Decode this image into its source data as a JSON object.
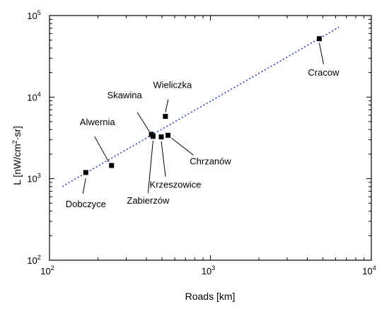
{
  "chart_data": {
    "type": "scatter",
    "title": "",
    "xlabel": "Roads [km]",
    "ylabel": {
      "prefix": "L [nW/cm",
      "sup": "2",
      "suffix": "·sr]"
    },
    "xscale": "log",
    "yscale": "log",
    "xlim": [
      100,
      10000
    ],
    "ylim": [
      100,
      100000
    ],
    "x_ticks": [
      {
        "value": 100,
        "base": "10",
        "exp": "2"
      },
      {
        "value": 1000,
        "base": "10",
        "exp": "3"
      },
      {
        "value": 10000,
        "base": "10",
        "exp": "4"
      }
    ],
    "y_ticks": [
      {
        "value": 100,
        "base": "10",
        "exp": "2"
      },
      {
        "value": 1000,
        "base": "10",
        "exp": "3"
      },
      {
        "value": 10000,
        "base": "10",
        "exp": "4"
      },
      {
        "value": 100000,
        "base": "10",
        "exp": "5"
      }
    ],
    "grid": false,
    "legend": "none",
    "points": [
      {
        "name": "Dobczyce",
        "x": 168,
        "y": 1190
      },
      {
        "name": "Alwernia",
        "x": 243,
        "y": 1450
      },
      {
        "name": "Skawina",
        "x": 430,
        "y": 3500
      },
      {
        "name": "Zabierzów",
        "x": 440,
        "y": 3300
      },
      {
        "name": "Krzeszowice",
        "x": 495,
        "y": 3250
      },
      {
        "name": "Wieliczka",
        "x": 525,
        "y": 5800
      },
      {
        "name": "Chrzanów",
        "x": 545,
        "y": 3400
      },
      {
        "name": "Cracow",
        "x": 4750,
        "y": 52000
      }
    ],
    "trendline": {
      "x": [
        120,
        6300
      ],
      "y": [
        800,
        72000
      ],
      "color": "#2b3fb0"
    },
    "marker_color": "#000000"
  }
}
